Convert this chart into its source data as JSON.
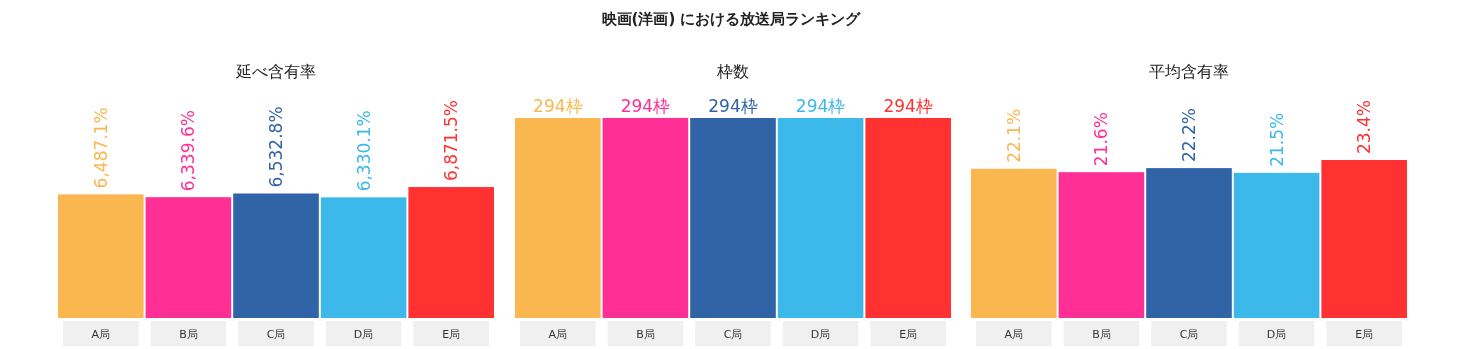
{
  "chart_data": [
    {
      "type": "bar",
      "title": "延べ含有率",
      "annotations": [
        "映画(洋画) における放送局ランキング"
      ],
      "categories": [
        "A局",
        "B局",
        "C局",
        "D局",
        "E局"
      ],
      "values": [
        6487.1,
        6339.6,
        6532.8,
        6330.1,
        6871.5
      ],
      "colors": [
        "#fbb74f",
        "#ff2f96",
        "#3163a7",
        "#3cb9ea",
        "#ff3131"
      ],
      "value_labels": [
        "6,487.1%",
        "6,339.6%",
        "6,532.8%",
        "6,330.1%",
        "6,871.5%"
      ]
    },
    {
      "type": "bar",
      "title": "枠数",
      "categories": [
        "A局",
        "B局",
        "C局",
        "D局",
        "E局"
      ],
      "values": [
        294,
        294,
        294,
        294,
        294
      ],
      "colors": [
        "#fbb74f",
        "#ff2f96",
        "#3163a7",
        "#3cb9ea",
        "#ff3131"
      ],
      "value_labels": [
        "294枠",
        "294枠",
        "294枠",
        "294枠",
        "294枠"
      ]
    },
    {
      "type": "bar",
      "title": "平均含有率",
      "categories": [
        "A局",
        "B局",
        "C局",
        "D局",
        "E局"
      ],
      "values": [
        22.1,
        21.6,
        22.2,
        21.5,
        23.4
      ],
      "colors": [
        "#fbb74f",
        "#ff2f96",
        "#3163a7",
        "#3cb9ea",
        "#ff3131"
      ],
      "value_labels": [
        "22.1%",
        "21.6%",
        "22.2%",
        "21.5%",
        "23.4%"
      ]
    }
  ]
}
